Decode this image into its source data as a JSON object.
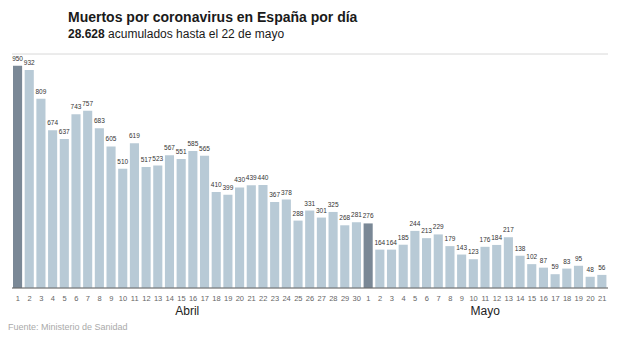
{
  "chart_data": {
    "type": "bar",
    "title": "Muertos por coronavirus en España por día",
    "subtitle": "28.628 acumulados hasta el 22 de mayo",
    "annotations": [
      "Abril",
      "Mayo"
    ],
    "source": "Fuente: Ministerio de Sanidad",
    "categories": [
      "1",
      "2",
      "3",
      "4",
      "5",
      "6",
      "7",
      "8",
      "9",
      "10",
      "11",
      "12",
      "13",
      "14",
      "15",
      "16",
      "17",
      "18",
      "19",
      "20",
      "21",
      "22",
      "23",
      "24",
      "25",
      "26",
      "27",
      "28",
      "29",
      "30",
      "1",
      "2",
      "3",
      "4",
      "5",
      "6",
      "7",
      "8",
      "9",
      "10",
      "11",
      "12",
      "13",
      "14",
      "15",
      "16",
      "17",
      "18",
      "19",
      "20",
      "21"
    ],
    "values": [
      950,
      932,
      809,
      674,
      637,
      743,
      757,
      683,
      605,
      510,
      619,
      517,
      523,
      567,
      551,
      585,
      565,
      410,
      399,
      430,
      439,
      440,
      367,
      378,
      288,
      331,
      301,
      325,
      268,
      281,
      276,
      164,
      164,
      185,
      244,
      213,
      229,
      179,
      143,
      123,
      176,
      184,
      217,
      138,
      102,
      87,
      59,
      83,
      95,
      48,
      56
    ],
    "colors": [
      "#7a8896",
      "#b8cad6",
      "#b8cad6",
      "#b8cad6",
      "#b8cad6",
      "#b8cad6",
      "#b8cad6",
      "#b8cad6",
      "#b8cad6",
      "#b8cad6",
      "#b8cad6",
      "#b8cad6",
      "#b8cad6",
      "#b8cad6",
      "#b8cad6",
      "#b8cad6",
      "#b8cad6",
      "#b8cad6",
      "#b8cad6",
      "#b8cad6",
      "#b8cad6",
      "#b8cad6",
      "#b8cad6",
      "#b8cad6",
      "#b8cad6",
      "#b8cad6",
      "#b8cad6",
      "#b8cad6",
      "#b8cad6",
      "#b8cad6",
      "#7a8896",
      "#b8cad6",
      "#b8cad6",
      "#b8cad6",
      "#b8cad6",
      "#b8cad6",
      "#b8cad6",
      "#b8cad6",
      "#b8cad6",
      "#b8cad6",
      "#b8cad6",
      "#b8cad6",
      "#b8cad6",
      "#b8cad6",
      "#b8cad6",
      "#b8cad6",
      "#b8cad6",
      "#b8cad6",
      "#b8cad6",
      "#b8cad6",
      "#b8cad6"
    ],
    "ylim": [
      0,
      1000
    ],
    "yticks": [
      0,
      200,
      400,
      600,
      800,
      1000
    ],
    "grid": true,
    "data_labels": true,
    "tick_labels": "x"
  }
}
